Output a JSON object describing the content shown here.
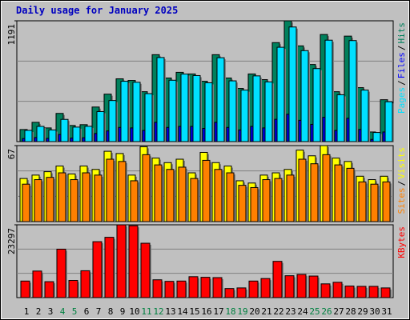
{
  "chart_data": [
    {
      "type": "bar",
      "title": "Daily usage for January 2025",
      "series": [
        {
          "name": "Hits",
          "color": "#00805c",
          "values": [
            119,
            190,
            135,
            278,
            159,
            167,
            341,
            468,
            619,
            603,
            492,
            857,
            627,
            683,
            667,
            595,
            857,
            627,
            524,
            667,
            611,
            976,
            1191,
            944,
            760,
            1056,
            492,
            1040,
            532,
            95,
            413
          ]
        },
        {
          "name": "Files",
          "color": "#0000ff",
          "values": [
            30,
            40,
            32,
            70,
            35,
            38,
            80,
            105,
            140,
            135,
            110,
            190,
            140,
            150,
            150,
            130,
            190,
            140,
            115,
            150,
            135,
            220,
            270,
            210,
            170,
            240,
            110,
            230,
            120,
            22,
            95
          ]
        },
        {
          "name": "Pages",
          "color": "#00e0ff",
          "values": [
            111,
            150,
            115,
            219,
            143,
            151,
            296,
            405,
            595,
            585,
            473,
            829,
            605,
            666,
            651,
            580,
            827,
            599,
            508,
            648,
            589,
            930,
            1130,
            897,
            720,
            1000,
            462,
            996,
            508,
            90,
            393
          ]
        }
      ],
      "legend_order": [
        2,
        1,
        0
      ],
      "legend_separator": "/",
      "ylim": [
        0,
        1191
      ],
      "yticks": [
        1191
      ],
      "grid_divisions": 3
    },
    {
      "type": "bar",
      "series": [
        {
          "name": "Visits",
          "color": "#ffff00",
          "values": [
            38,
            41,
            44,
            49,
            42,
            49,
            46,
            62,
            60,
            41,
            66,
            56,
            52,
            55,
            43,
            61,
            52,
            49,
            36,
            34,
            41,
            43,
            46,
            63,
            58,
            67,
            56,
            53,
            40,
            37,
            40
          ]
        },
        {
          "name": "Sites",
          "color": "#ff8000",
          "values": [
            33,
            37,
            39,
            43,
            37,
            43,
            41,
            55,
            53,
            36,
            59,
            50,
            46,
            48,
            38,
            54,
            46,
            43,
            32,
            30,
            37,
            38,
            41,
            55,
            51,
            59,
            50,
            47,
            35,
            33,
            35
          ]
        }
      ],
      "legend_order": [
        1,
        0
      ],
      "legend_separator": "/",
      "ylim": [
        0,
        67
      ],
      "yticks": [
        67
      ],
      "grid_divisions": 3
    },
    {
      "type": "bar",
      "categories": [
        "1",
        "2",
        "3",
        "4",
        "5",
        "6",
        "7",
        "8",
        "9",
        "10",
        "11",
        "12",
        "13",
        "14",
        "15",
        "16",
        "17",
        "18",
        "19",
        "20",
        "21",
        "22",
        "23",
        "24",
        "25",
        "26",
        "27",
        "28",
        "29",
        "30",
        "31"
      ],
      "category_colors": [
        "#000000",
        "#000000",
        "#000000",
        "#008040",
        "#008040",
        "#000000",
        "#000000",
        "#000000",
        "#000000",
        "#000000",
        "#008040",
        "#008040",
        "#000000",
        "#000000",
        "#000000",
        "#000000",
        "#000000",
        "#008040",
        "#008040",
        "#000000",
        "#000000",
        "#000000",
        "#000000",
        "#000000",
        "#008040",
        "#008040",
        "#000000",
        "#000000",
        "#000000",
        "#000000",
        "#000000"
      ],
      "series": [
        {
          "name": "KBytes",
          "color": "#ff0000",
          "values": [
            5300,
            8500,
            5100,
            15500,
            5500,
            8600,
            17900,
            19300,
            23297,
            23000,
            17400,
            5700,
            5200,
            5300,
            6700,
            6500,
            6400,
            2900,
            3100,
            5300,
            6100,
            11600,
            7000,
            7400,
            6900,
            4400,
            4900,
            3700,
            3600,
            3600,
            3100
          ]
        }
      ],
      "legend_order": [
        0
      ],
      "ylim": [
        0,
        23297
      ],
      "yticks": [
        23297
      ],
      "grid_divisions": 3
    }
  ]
}
